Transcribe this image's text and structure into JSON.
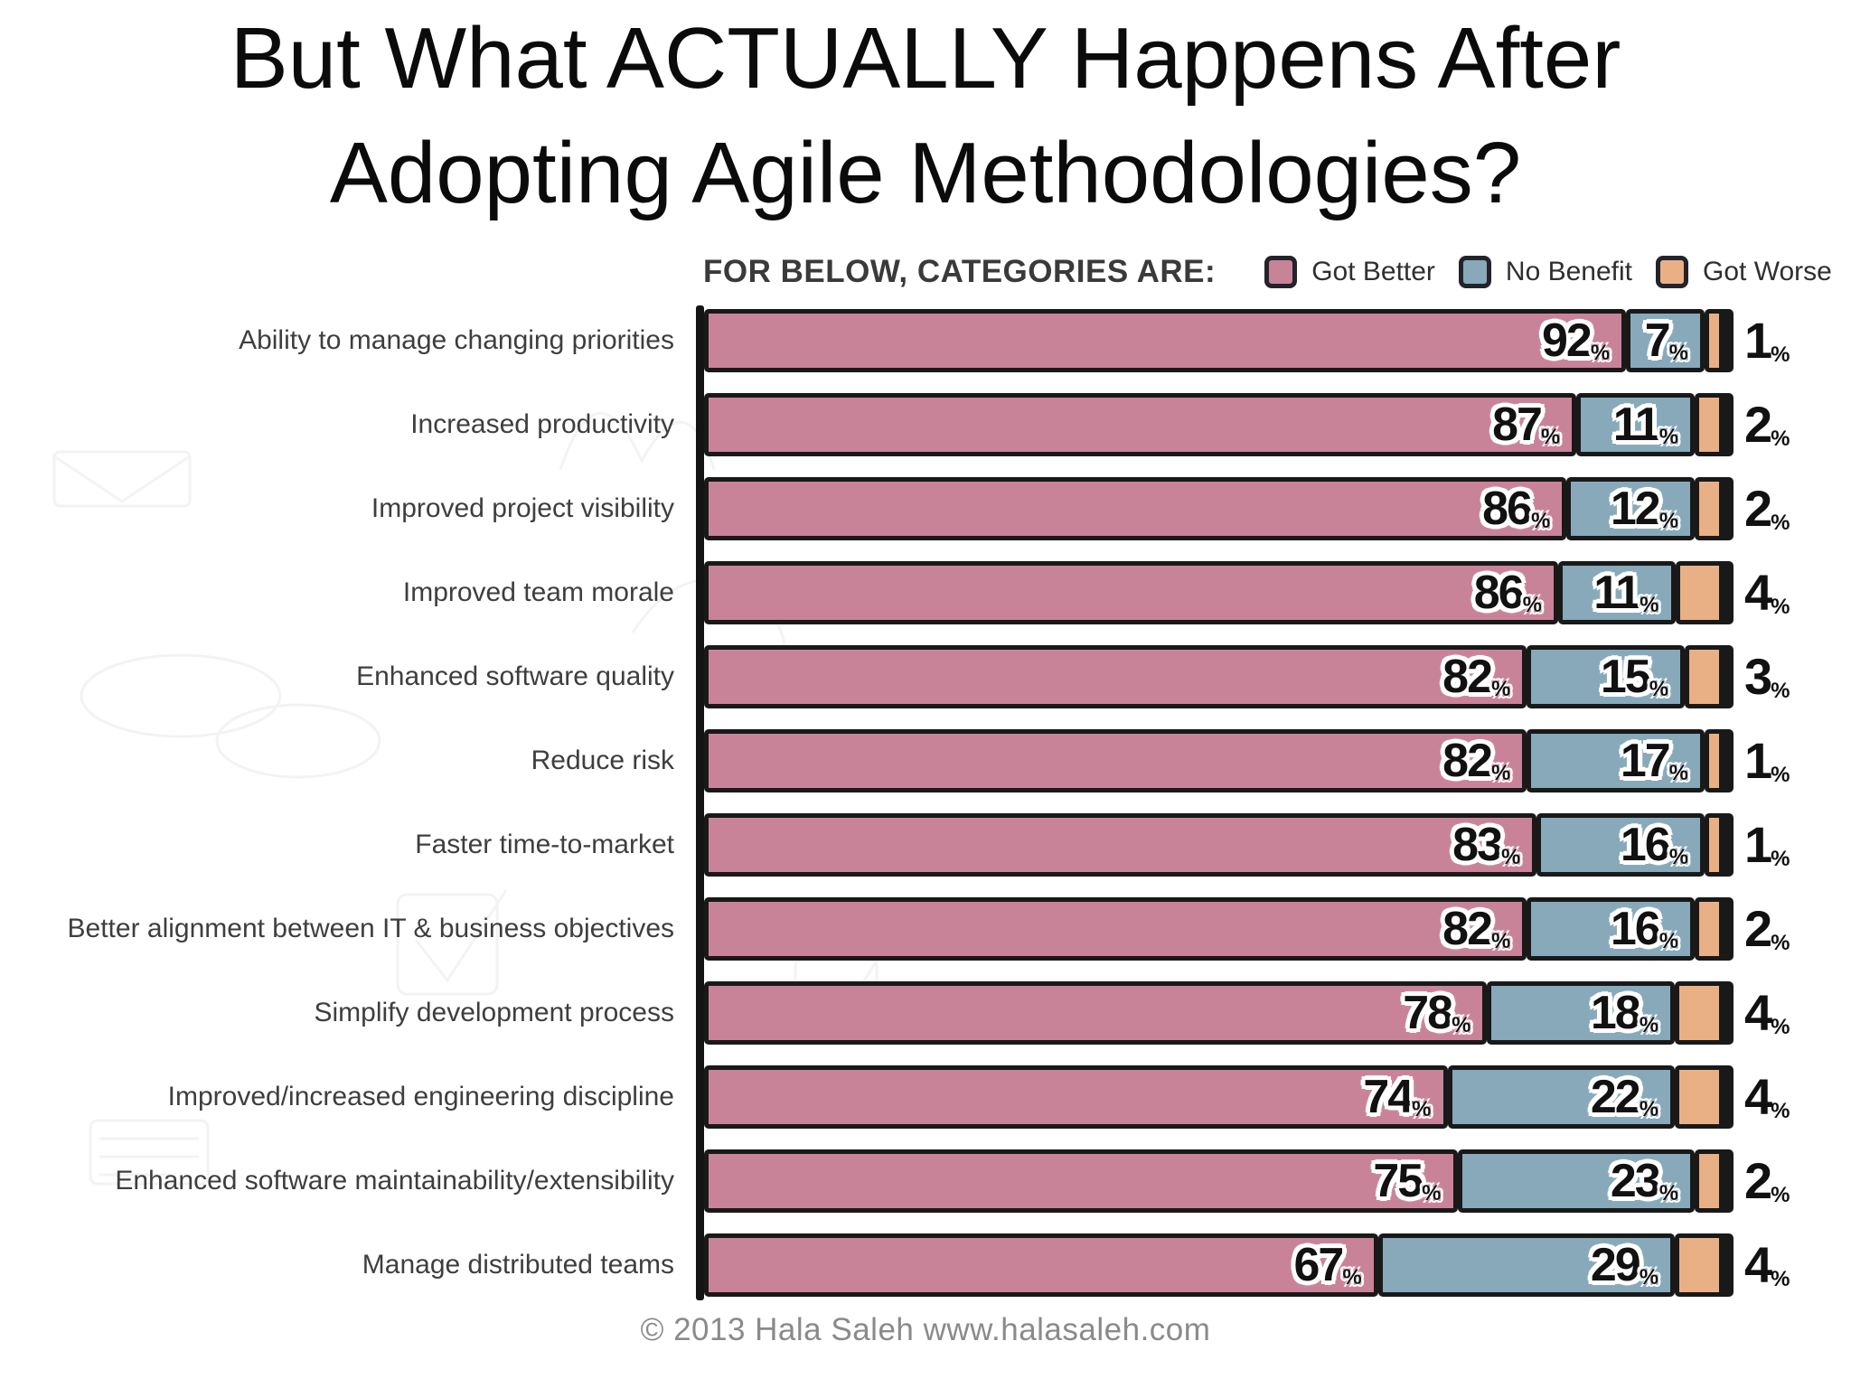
{
  "slide": {
    "title": "But What ACTUALLY Happens After Adopting Agile Methodologies?",
    "footer": "© 2013 Hala Saleh www.halasaleh.com"
  },
  "legend": {
    "prefix": "FOR BELOW, CATEGORIES ARE:",
    "items": [
      {
        "label": "Got Better",
        "color": "#c98399"
      },
      {
        "label": "No Benefit",
        "color": "#87a9ba"
      },
      {
        "label": "Got Worse",
        "color": "#e9b086"
      }
    ]
  },
  "chart_data": {
    "type": "bar",
    "orientation": "horizontal",
    "stacked": true,
    "unit": "%",
    "xlim": [
      0,
      100
    ],
    "legend_position": "top",
    "categories": [
      "Ability to manage changing priorities",
      "Increased productivity",
      "Improved project visibility",
      "Improved team morale",
      "Enhanced software quality",
      "Reduce risk",
      "Faster time-to-market",
      "Better alignment between IT & business objectives",
      "Simplify development process",
      "Improved/increased engineering discipline",
      "Enhanced software maintainability/extensibility",
      "Manage distributed teams"
    ],
    "series": [
      {
        "name": "Got Better",
        "color": "#c98399",
        "values": [
          92,
          87,
          86,
          86,
          82,
          82,
          83,
          82,
          78,
          74,
          75,
          67
        ]
      },
      {
        "name": "No Benefit",
        "color": "#87a9ba",
        "values": [
          7,
          11,
          12,
          11,
          15,
          17,
          16,
          16,
          18,
          22,
          23,
          29
        ]
      },
      {
        "name": "Got Worse",
        "color": "#e9b086",
        "values": [
          1,
          2,
          2,
          4,
          3,
          1,
          1,
          2,
          4,
          4,
          2,
          4
        ]
      }
    ]
  }
}
